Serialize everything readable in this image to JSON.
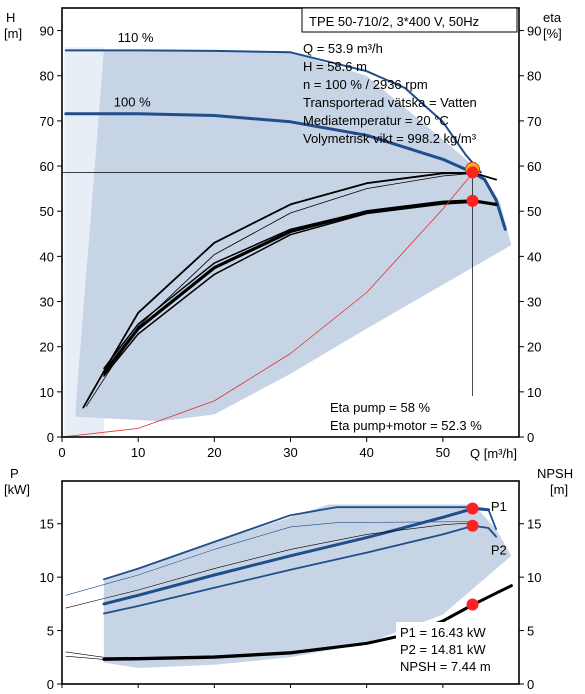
{
  "chart_data": [
    {
      "type": "line",
      "title": "TPE 50-710/2, 3*400 V, 50Hz",
      "ylabel_left": "H\n[m]",
      "ylabel_right": "eta\n[%]",
      "xlabel": "Q [m³/h]",
      "xlim": [
        0,
        60
      ],
      "ylim": [
        0,
        95
      ],
      "x_ticks": [
        0,
        10,
        20,
        30,
        40,
        50
      ],
      "y_ticks": [
        0,
        10,
        20,
        30,
        40,
        50,
        60,
        70,
        80,
        90
      ],
      "grid": false,
      "info_lines": [
        "Q = 53.9 m³/h",
        "H = 58.6 m",
        "n = 100 % / 2936 rpm",
        "Transporterad vätska = Vatten",
        "Mediatemperatur = 20 °C",
        "Volymetrisk vikt = 998.2 kg/m³"
      ],
      "eta_lines": [
        "Eta pump = 58 %",
        "Eta pump+motor = 52.3 %"
      ],
      "curve_labels": [
        {
          "text": "110 %",
          "x": 7.3,
          "y": 87.5
        },
        {
          "text": "100 %",
          "x": 6.8,
          "y": 73.2
        }
      ],
      "operating_range": [
        [
          1.8,
          6.7
        ],
        [
          5.5,
          85.6
        ],
        [
          30,
          85.2
        ],
        [
          40,
          80
        ],
        [
          52,
          63
        ],
        [
          55,
          58.5
        ],
        [
          57.5,
          52
        ],
        [
          59,
          42.5
        ],
        [
          40,
          24
        ],
        [
          30,
          14
        ],
        [
          20,
          5
        ],
        [
          13,
          3.5
        ],
        [
          1.8,
          4.5
        ]
      ],
      "series": [
        {
          "id": "head_110",
          "x": [
            0.5,
            5.5,
            10,
            20,
            30,
            40,
            45,
            50,
            53,
            55
          ],
          "y": [
            85.6,
            85.6,
            85.6,
            85.5,
            85.2,
            81,
            77.3,
            69.8,
            62.5,
            58.6
          ],
          "color": "#1f4e8c",
          "width": 2
        },
        {
          "id": "head_100",
          "x": [
            0.5,
            5.5,
            10,
            20,
            30,
            40,
            50,
            53.9,
            55.5,
            57,
            58.2
          ],
          "y": [
            71.6,
            71.6,
            71.6,
            71.2,
            69.8,
            66.8,
            61.5,
            58.6,
            57,
            52.5,
            46
          ],
          "color": "#1f4e8c",
          "width": 3
        },
        {
          "id": "eta_pump_upper",
          "x": [
            2.8,
            5.5,
            10,
            20,
            30,
            40,
            50,
            54,
            57
          ],
          "y": [
            6.5,
            14.5,
            27.5,
            43,
            51.5,
            56.2,
            58.4,
            58.5,
            57
          ],
          "color": "#000000",
          "width": 1.8
        },
        {
          "id": "eta_pump_lower",
          "x": [
            3.2,
            5.5,
            10,
            20,
            30,
            40,
            50,
            54
          ],
          "y": [
            6.8,
            12.8,
            24.5,
            40.4,
            49.6,
            55,
            57.8,
            58.4
          ],
          "color": "#000000",
          "width": 0.8
        },
        {
          "id": "eta_total_upper",
          "x": [
            5.5,
            10,
            20,
            30,
            40,
            50,
            54,
            57
          ],
          "y": [
            15.2,
            25,
            38.5,
            46,
            50,
            51.8,
            52.1,
            51.5
          ],
          "color": "#000000",
          "width": 1.5
        },
        {
          "id": "eta_total_mid",
          "x": [
            5.5,
            10,
            20,
            30,
            40,
            50,
            54,
            57
          ],
          "y": [
            14.2,
            24,
            37.5,
            45.5,
            49.9,
            52,
            52.3,
            51.5
          ],
          "color": "#000000",
          "width": 3.2
        },
        {
          "id": "eta_total_lower",
          "x": [
            5.5,
            10,
            20,
            30,
            40,
            50,
            54
          ],
          "y": [
            13.5,
            22.8,
            36,
            44.8,
            49.5,
            51.6,
            52
          ],
          "color": "#000000",
          "width": 1.5
        },
        {
          "id": "system_curve",
          "x": [
            0,
            10,
            20,
            30,
            40,
            50,
            54
          ],
          "y": [
            0,
            1.9,
            8,
            18.5,
            32,
            50.5,
            58.6
          ],
          "color": "#e0302a",
          "width": 0.8
        }
      ],
      "operating_point": {
        "q": 53.9,
        "h": 58.6,
        "eta_pump": 58,
        "eta_total": 52.3
      },
      "reference_line_y": 58.6
    },
    {
      "type": "line",
      "ylabel_left": "P\n[kW]",
      "ylabel_right": "NPSH\n[m]",
      "xlim": [
        0,
        60
      ],
      "ylim": [
        0,
        19
      ],
      "y_ticks": [
        0,
        5,
        10,
        15
      ],
      "grid": false,
      "series_labels": [
        {
          "text": "P1",
          "x": 56.3,
          "y": 16.2
        },
        {
          "text": "P2",
          "x": 56.3,
          "y": 12.1
        }
      ],
      "values_lines": [
        "P1 = 16.43 kW",
        "P2 = 14.81 kW",
        "NPSH = 7.44 m"
      ],
      "power_range": [
        [
          5.5,
          2
        ],
        [
          5.5,
          9.8
        ],
        [
          35,
          16.8
        ],
        [
          54,
          16.8
        ],
        [
          57,
          14.5
        ],
        [
          59,
          12
        ],
        [
          50,
          6.5
        ],
        [
          40,
          3.8
        ],
        [
          30,
          2.5
        ],
        [
          20,
          1.8
        ],
        [
          10,
          1.5
        ],
        [
          5.5,
          2
        ]
      ],
      "series": [
        {
          "id": "p1_110",
          "x": [
            5.5,
            10,
            20,
            30,
            36,
            54,
            56,
            57
          ],
          "y": [
            9.8,
            10.8,
            13.3,
            15.8,
            16.55,
            16.55,
            16.3,
            14.5
          ],
          "color": "#1f4e8c",
          "width": 1.8
        },
        {
          "id": "p1_100",
          "x": [
            5.5,
            10,
            20,
            30,
            40,
            50,
            54,
            56
          ],
          "y": [
            7.5,
            8.3,
            10.2,
            12,
            13.7,
            15.6,
            16.43,
            16.3
          ],
          "color": "#1f4e8c",
          "width": 3
        },
        {
          "id": "p2_100",
          "x": [
            5.5,
            10,
            20,
            30,
            40,
            50,
            54,
            56,
            57
          ],
          "y": [
            6.6,
            7.3,
            9,
            10.7,
            12.3,
            14,
            14.81,
            14.6,
            13.8
          ],
          "color": "#1f4e8c",
          "width": 1.8
        },
        {
          "id": "thin_a",
          "x": [
            0.5,
            5.5,
            10,
            20,
            30,
            36,
            54
          ],
          "y": [
            8.3,
            9.3,
            10.2,
            12.6,
            14.7,
            15.1,
            15.2
          ],
          "color": "#1f4e8c",
          "width": 0.6
        },
        {
          "id": "thin_b",
          "x": [
            0.5,
            5.5,
            10,
            20,
            30,
            40,
            50,
            54
          ],
          "y": [
            7.1,
            8,
            8.8,
            10.8,
            12.6,
            14,
            14.9,
            15.1
          ],
          "color": "#000000",
          "width": 0.6
        },
        {
          "id": "npsh_main",
          "x": [
            5.5,
            10,
            20,
            30,
            40,
            45,
            50,
            54,
            57,
            59
          ],
          "y": [
            2.3,
            2.35,
            2.5,
            2.9,
            3.8,
            4.6,
            5.9,
            7.44,
            8.5,
            9.2
          ],
          "color": "#000000",
          "width": 3
        },
        {
          "id": "npsh_thin_a",
          "x": [
            0.5,
            5.5,
            10,
            20,
            30,
            40
          ],
          "y": [
            3,
            2.5,
            2.5,
            2.65,
            3.05,
            3.9
          ],
          "color": "#000000",
          "width": 0.6
        },
        {
          "id": "npsh_thin_b",
          "x": [
            0.5,
            5.5,
            10,
            20,
            30,
            40
          ],
          "y": [
            2.6,
            2.3,
            2.3,
            2.45,
            2.9,
            3.75
          ],
          "color": "#000000",
          "width": 0.6
        }
      ],
      "operating_points": [
        {
          "id": "p1",
          "q": 53.9,
          "y": 16.43
        },
        {
          "id": "p2",
          "q": 53.9,
          "y": 14.81
        },
        {
          "id": "npsh",
          "q": 53.9,
          "y": 7.44
        }
      ]
    }
  ]
}
